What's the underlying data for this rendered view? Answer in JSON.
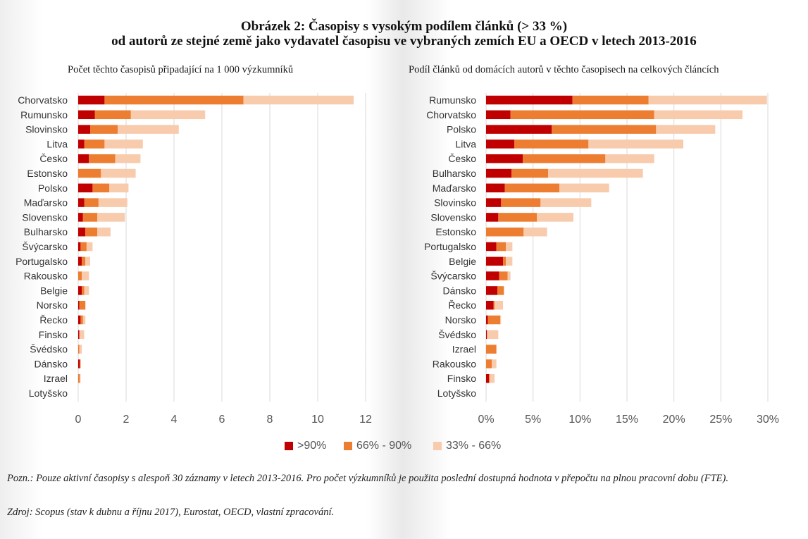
{
  "title_line1": "Obrázek 2: Časopisy s vysokým podílem článků (> 33 %)",
  "title_line2": "od autorů ze stejné země jako vydavatel časopisu ve vybraných zemích EU a OECD v letech 2013-2016",
  "legend": [
    {
      "label": ">90%",
      "color": "#c00000"
    },
    {
      "label": "66% - 90%",
      "color": "#ed7d31"
    },
    {
      "label": "33% - 66%",
      "color": "#f8cbad"
    }
  ],
  "note": "Pozn.: Pouze aktivní časopisy s alespoň 30 záznamy v letech 2013-2016. Pro počet výzkumníků je použita poslední dostupná hodnota v přepočtu na plnou pracovní dobu (FTE).",
  "source": "Zdroj: Scopus (stav k dubnu a říjnu 2017), Eurostat, OECD, vlastní zpracování.",
  "chart_data": [
    {
      "type": "bar",
      "orientation": "horizontal",
      "stacked": true,
      "title": "Počet těchto časopisů připadající na 1 000 výzkumníků",
      "categories": [
        "Chorvatsko",
        "Rumunsko",
        "Slovinsko",
        "Litva",
        "Česko",
        "Estonsko",
        "Polsko",
        "Maďarsko",
        "Slovensko",
        "Bulharsko",
        "Švýcarsko",
        "Portugalsko",
        "Rakousko",
        "Belgie",
        "Norsko",
        "Řecko",
        "Finsko",
        "Švédsko",
        "Dánsko",
        "Izrael",
        "Lotyšsko"
      ],
      "series": [
        {
          "name": ">90%",
          "values": [
            1.1,
            0.7,
            0.5,
            0.25,
            0.45,
            0,
            0.6,
            0.25,
            0.2,
            0.3,
            0.1,
            0.15,
            0,
            0.15,
            0.05,
            0.1,
            0.05,
            0,
            0.07,
            0,
            0
          ]
        },
        {
          "name": "66% - 90%",
          "values": [
            5.8,
            1.5,
            1.15,
            0.85,
            1.1,
            0.95,
            0.7,
            0.6,
            0.6,
            0.5,
            0.25,
            0.15,
            0.15,
            0.1,
            0.25,
            0.1,
            0,
            0.05,
            0.03,
            0.07,
            0
          ]
        },
        {
          "name": "33% - 66%",
          "values": [
            4.6,
            3.1,
            2.55,
            1.6,
            1.05,
            1.45,
            0.8,
            1.2,
            1.15,
            0.55,
            0.25,
            0.2,
            0.3,
            0.2,
            0,
            0.1,
            0.2,
            0.1,
            0,
            0.03,
            0
          ]
        }
      ],
      "xlim": [
        0,
        12
      ],
      "xticks": [
        "0",
        "2",
        "4",
        "6",
        "8",
        "10",
        "12"
      ],
      "grid": true,
      "legend_position": "bottom"
    },
    {
      "type": "bar",
      "orientation": "horizontal",
      "stacked": true,
      "title": "Podíl článků od domácích autorů v těchto časopisech na celkových článcích",
      "categories": [
        "Rumunsko",
        "Chorvatsko",
        "Polsko",
        "Litva",
        "Česko",
        "Bulharsko",
        "Maďarsko",
        "Slovinsko",
        "Slovensko",
        "Estonsko",
        "Portugalsko",
        "Belgie",
        "Švýcarsko",
        "Dánsko",
        "Řecko",
        "Norsko",
        "Švédsko",
        "Izrael",
        "Rakousko",
        "Finsko",
        "Lotyšsko"
      ],
      "series": [
        {
          "name": ">90%",
          "values": [
            9.2,
            2.6,
            7,
            3,
            3.9,
            2.7,
            2,
            1.6,
            1.3,
            0,
            1.1,
            1.8,
            1.4,
            1.2,
            0.8,
            0.2,
            0.1,
            0,
            0,
            0.3,
            0
          ]
        },
        {
          "name": "66% - 90%",
          "values": [
            8.1,
            15.3,
            11.1,
            7.9,
            8.8,
            3.9,
            5.8,
            4.2,
            4.1,
            4,
            1,
            0.3,
            0.9,
            0.7,
            0.1,
            1.3,
            0,
            1.1,
            0.6,
            0.1,
            0
          ]
        },
        {
          "name": "33% - 66%",
          "values": [
            12.6,
            9.4,
            6.3,
            10.1,
            5.2,
            10.1,
            5.3,
            5.4,
            3.9,
            2.5,
            0.7,
            0.7,
            0.3,
            0,
            0.9,
            0.1,
            1.2,
            0,
            0.5,
            0.5,
            0
          ]
        }
      ],
      "xlim": [
        0,
        30
      ],
      "xticks": [
        "0%",
        "5%",
        "10%",
        "15%",
        "20%",
        "25%",
        "30%"
      ],
      "grid": true,
      "legend_position": "bottom"
    }
  ]
}
